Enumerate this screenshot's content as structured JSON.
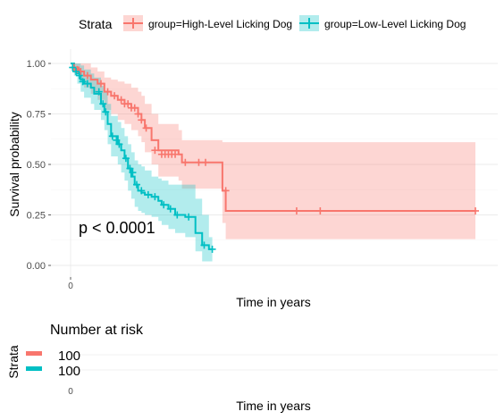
{
  "chart_data": [
    {
      "type": "line",
      "subtype": "kaplan-meier-survival-curve",
      "title": "",
      "xlabel": "Time in years",
      "ylabel": "Survival probability",
      "xlim": [
        0,
        6
      ],
      "ylim": [
        0,
        1
      ],
      "x_ticks": [
        "0"
      ],
      "y_ticks": [
        "0.00",
        "0.25",
        "0.50",
        "0.75",
        "1.00"
      ],
      "grid": true,
      "legend_title": "Strata",
      "legend_position": "top",
      "annotation": "p < 0.0001",
      "series": [
        {
          "name": "group=High-Level Licking Dog",
          "color": "#F8766D",
          "x": [
            0,
            0.05,
            0.12,
            0.2,
            0.3,
            0.4,
            0.5,
            0.6,
            0.7,
            0.8,
            0.9,
            1.0,
            1.05,
            1.1,
            1.2,
            1.3,
            1.6,
            1.65,
            1.75,
            2.25,
            2.3,
            6.0
          ],
          "y": [
            1.0,
            0.98,
            0.96,
            0.94,
            0.92,
            0.9,
            0.86,
            0.84,
            0.82,
            0.8,
            0.78,
            0.75,
            0.72,
            0.68,
            0.62,
            0.57,
            0.55,
            0.51,
            0.51,
            0.37,
            0.27,
            0.27
          ],
          "ci_upper": [
            1.0,
            1.0,
            1.0,
            1.0,
            0.98,
            0.96,
            0.93,
            0.92,
            0.91,
            0.9,
            0.88,
            0.86,
            0.84,
            0.8,
            0.75,
            0.7,
            0.67,
            0.62,
            0.62,
            0.61,
            0.61,
            0.61
          ],
          "ci_lower": [
            1.0,
            0.95,
            0.92,
            0.88,
            0.85,
            0.82,
            0.77,
            0.75,
            0.72,
            0.7,
            0.67,
            0.64,
            0.61,
            0.56,
            0.5,
            0.44,
            0.42,
            0.38,
            0.38,
            0.21,
            0.13,
            0.13
          ],
          "censor_x": [
            0.05,
            0.1,
            0.15,
            0.25,
            0.45,
            0.55,
            0.65,
            0.75,
            0.8,
            0.85,
            0.9,
            0.95,
            1.0,
            1.05,
            1.12,
            1.25,
            1.35,
            1.4,
            1.45,
            1.5,
            1.55,
            1.7,
            1.9,
            2.0,
            2.3,
            3.35,
            3.7,
            6.0
          ],
          "censor_y": [
            0.98,
            0.97,
            0.96,
            0.94,
            0.9,
            0.86,
            0.84,
            0.82,
            0.8,
            0.8,
            0.78,
            0.78,
            0.75,
            0.72,
            0.68,
            0.57,
            0.55,
            0.55,
            0.55,
            0.55,
            0.55,
            0.51,
            0.51,
            0.51,
            0.37,
            0.27,
            0.27,
            0.27
          ]
        },
        {
          "name": "group=Low-Level Licking Dog",
          "color": "#00BFC4",
          "x": [
            0,
            0.05,
            0.1,
            0.15,
            0.2,
            0.3,
            0.35,
            0.45,
            0.5,
            0.55,
            0.6,
            0.7,
            0.75,
            0.8,
            0.85,
            0.9,
            0.95,
            1.0,
            1.05,
            1.1,
            1.2,
            1.3,
            1.35,
            1.45,
            1.55,
            1.7,
            1.85,
            1.95,
            2.05,
            2.1
          ],
          "y": [
            1.0,
            0.97,
            0.95,
            0.92,
            0.9,
            0.88,
            0.85,
            0.8,
            0.76,
            0.7,
            0.64,
            0.6,
            0.57,
            0.53,
            0.48,
            0.44,
            0.4,
            0.37,
            0.36,
            0.35,
            0.34,
            0.32,
            0.3,
            0.28,
            0.25,
            0.24,
            0.16,
            0.1,
            0.08,
            0.08
          ],
          "ci_upper": [
            1.0,
            1.0,
            1.0,
            0.99,
            0.97,
            0.95,
            0.93,
            0.89,
            0.86,
            0.8,
            0.74,
            0.71,
            0.68,
            0.64,
            0.6,
            0.56,
            0.52,
            0.5,
            0.49,
            0.47,
            0.44,
            0.43,
            0.42,
            0.4,
            0.4,
            0.4,
            0.33,
            0.25,
            0.14,
            0.14
          ],
          "ci_lower": [
            1.0,
            0.94,
            0.9,
            0.86,
            0.83,
            0.8,
            0.77,
            0.72,
            0.67,
            0.6,
            0.54,
            0.5,
            0.46,
            0.42,
            0.37,
            0.33,
            0.29,
            0.27,
            0.26,
            0.25,
            0.24,
            0.22,
            0.2,
            0.18,
            0.16,
            0.14,
            0.07,
            0.02,
            0.02,
            0.02
          ],
          "censor_x": [
            0.03,
            0.08,
            0.13,
            0.18,
            0.25,
            0.42,
            0.48,
            0.52,
            0.62,
            0.68,
            0.72,
            0.82,
            0.88,
            0.92,
            0.98,
            1.05,
            1.15,
            1.25,
            1.38,
            1.48,
            1.58,
            1.75,
            1.98,
            2.1
          ],
          "censor_y": [
            0.98,
            0.96,
            0.94,
            0.91,
            0.9,
            0.86,
            0.8,
            0.76,
            0.64,
            0.62,
            0.6,
            0.53,
            0.48,
            0.46,
            0.4,
            0.37,
            0.35,
            0.34,
            0.3,
            0.28,
            0.25,
            0.24,
            0.1,
            0.08
          ]
        }
      ]
    },
    {
      "type": "table",
      "title": "Number at risk",
      "ylabel": "Strata",
      "xlabel": "Time in years",
      "x_ticks": [
        "0"
      ],
      "series": [
        {
          "color": "#F8766D",
          "values": [
            "100"
          ]
        },
        {
          "color": "#00BFC4",
          "values": [
            "100"
          ]
        }
      ]
    }
  ]
}
